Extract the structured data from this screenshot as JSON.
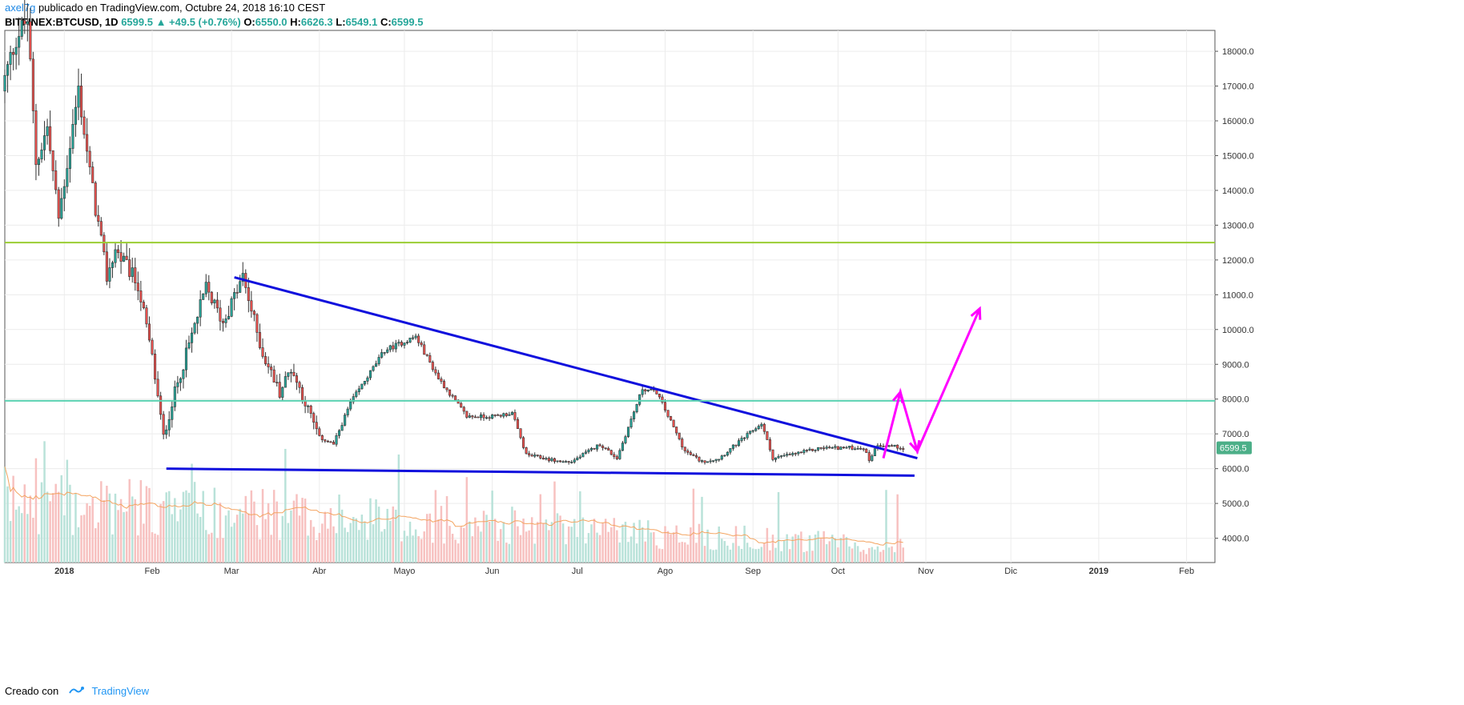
{
  "header": {
    "author": "axel7g",
    "published_text": "publicado en TradingView.com, Octubre 24, 2018 16:10 CEST",
    "symbol": "BITFINEX:BTCUSD, 1D",
    "last": "6599.5",
    "change": "▲ +49.5 (+0.76%)",
    "o_label": "O:",
    "o_value": "6550.0",
    "h_label": "H:",
    "h_value": "6626.3",
    "l_label": "L:",
    "l_value": "6549.1",
    "c_label": "C:",
    "c_value": "6599.5"
  },
  "footer": {
    "created_with": "Creado con",
    "brand": "TradingView"
  },
  "colors": {
    "up": "#26a69a",
    "down": "#ef5350",
    "up_vol": "#b9e2d9",
    "down_vol": "#f7c1c0",
    "trendline": "#1010dd",
    "projection": "#ff00ff",
    "resistance": "#9acd32",
    "support": "#5bd2b2",
    "ma_vol": "#f4a460",
    "price_label_bg": "#4caf88"
  },
  "chart_data": {
    "type": "candlestick",
    "symbol": "BITFINEX:BTCUSD",
    "interval": "1D",
    "y_axis": {
      "ticks": [
        4000,
        5000,
        6000,
        7000,
        8000,
        9000,
        10000,
        11000,
        12000,
        13000,
        14000,
        15000,
        16000,
        17000,
        18000
      ],
      "tick_labels": [
        "4000.0",
        "5000.0",
        "6000.0",
        "7000.0",
        "8000.0",
        "9000.0",
        "10000.0",
        "11000.0",
        "12000.0",
        "13000.0",
        "14000.0",
        "15000.0",
        "16000.0",
        "17000.0",
        "18000.0"
      ],
      "range": [
        3300,
        18600
      ],
      "position": "right"
    },
    "x_axis": {
      "ticks": [
        "2018-01-01",
        "2018-02-01",
        "2018-03-01",
        "2018-04-01",
        "2018-05-01",
        "2018-06-01",
        "2018-07-01",
        "2018-08-01",
        "2018-09-01",
        "2018-10-01",
        "2018-11-01",
        "2018-12-01",
        "2019-01-01",
        "2019-02-01"
      ],
      "tick_labels": [
        "2018",
        "Feb",
        "Mar",
        "Abr",
        "Mayo",
        "Jun",
        "Jul",
        "Ago",
        "Sep",
        "Oct",
        "Nov",
        "Dic",
        "2019",
        "Feb"
      ],
      "range": [
        "2017-12-11",
        "2019-02-11"
      ]
    },
    "grid": true,
    "last_price": 6599.5,
    "last_price_label": "6599.5",
    "price_anchors": [
      {
        "date": "2017-12-11",
        "close": 17200
      },
      {
        "date": "2017-12-15",
        "close": 18400
      },
      {
        "date": "2017-12-19",
        "close": 18900
      },
      {
        "date": "2017-12-22",
        "close": 14800
      },
      {
        "date": "2017-12-26",
        "close": 15800
      },
      {
        "date": "2017-12-30",
        "close": 13200
      },
      {
        "date": "2018-01-06",
        "close": 16900
      },
      {
        "date": "2018-01-10",
        "close": 14500
      },
      {
        "date": "2018-01-16",
        "close": 11500
      },
      {
        "date": "2018-01-19",
        "close": 12300
      },
      {
        "date": "2018-01-27",
        "close": 11300
      },
      {
        "date": "2018-02-01",
        "close": 9200
      },
      {
        "date": "2018-02-05",
        "close": 6900
      },
      {
        "date": "2018-02-09",
        "close": 8200
      },
      {
        "date": "2018-02-20",
        "close": 11200
      },
      {
        "date": "2018-02-26",
        "close": 10200
      },
      {
        "date": "2018-03-05",
        "close": 11500
      },
      {
        "date": "2018-03-12",
        "close": 9300
      },
      {
        "date": "2018-03-18",
        "close": 8200
      },
      {
        "date": "2018-03-22",
        "close": 8900
      },
      {
        "date": "2018-04-01",
        "close": 6900
      },
      {
        "date": "2018-04-06",
        "close": 6700
      },
      {
        "date": "2018-04-12",
        "close": 7900
      },
      {
        "date": "2018-04-24",
        "close": 9400
      },
      {
        "date": "2018-05-05",
        "close": 9800
      },
      {
        "date": "2018-05-13",
        "close": 8600
      },
      {
        "date": "2018-05-23",
        "close": 7500
      },
      {
        "date": "2018-06-01",
        "close": 7500
      },
      {
        "date": "2018-06-08",
        "close": 7600
      },
      {
        "date": "2018-06-13",
        "close": 6400
      },
      {
        "date": "2018-06-25",
        "close": 6200
      },
      {
        "date": "2018-06-29",
        "close": 6200
      },
      {
        "date": "2018-07-09",
        "close": 6700
      },
      {
        "date": "2018-07-15",
        "close": 6300
      },
      {
        "date": "2018-07-24",
        "close": 8300
      },
      {
        "date": "2018-07-29",
        "close": 8200
      },
      {
        "date": "2018-08-08",
        "close": 6500
      },
      {
        "date": "2018-08-14",
        "close": 6200
      },
      {
        "date": "2018-08-20",
        "close": 6300
      },
      {
        "date": "2018-09-04",
        "close": 7300
      },
      {
        "date": "2018-09-08",
        "close": 6300
      },
      {
        "date": "2018-09-20",
        "close": 6500
      },
      {
        "date": "2018-09-25",
        "close": 6600
      },
      {
        "date": "2018-10-10",
        "close": 6600
      },
      {
        "date": "2018-10-12",
        "close": 6250
      },
      {
        "date": "2018-10-15",
        "close": 6700
      },
      {
        "date": "2018-10-24",
        "close": 6600
      }
    ],
    "volume_scale_note": "Volume bars with moving average, unlabeled",
    "drawings": [
      {
        "name": "descending-trendline",
        "points": [
          {
            "date": "2018-03-02",
            "price": 11500
          },
          {
            "date": "2018-10-29",
            "price": 6300
          }
        ]
      },
      {
        "name": "support-line",
        "points": [
          {
            "date": "2018-02-06",
            "price": 6000
          },
          {
            "date": "2018-10-28",
            "price": 5800
          }
        ]
      },
      {
        "name": "resistance-line",
        "price": 12500
      },
      {
        "name": "support-zone-line",
        "price": 7950
      },
      {
        "name": "projection-path",
        "points": [
          {
            "date": "2018-10-17",
            "price": 6300
          },
          {
            "date": "2018-10-23",
            "price": 8200
          },
          {
            "date": "2018-10-29",
            "price": 6500
          },
          {
            "date": "2018-11-20",
            "price": 10600
          }
        ]
      }
    ]
  }
}
